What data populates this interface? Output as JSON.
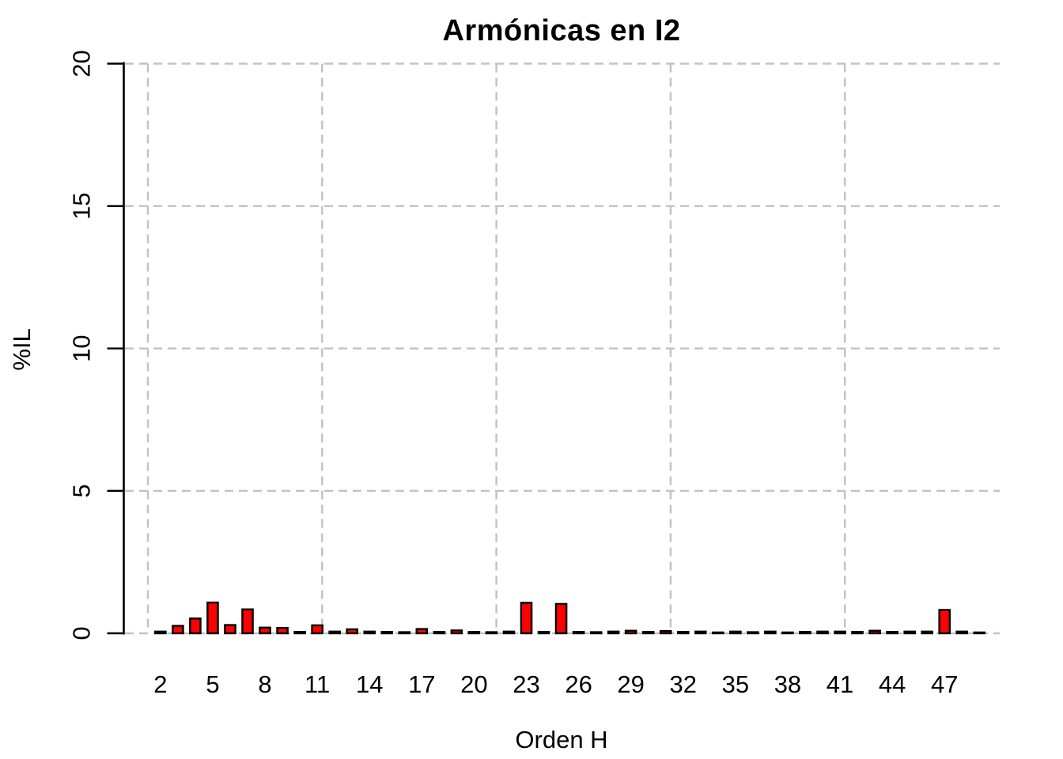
{
  "chart_data": {
    "type": "bar",
    "title": "Armónicas en I2",
    "xlabel": "Orden H",
    "ylabel": "%IL",
    "x": [
      2,
      3,
      4,
      5,
      6,
      7,
      8,
      9,
      10,
      11,
      12,
      13,
      14,
      15,
      16,
      17,
      18,
      19,
      20,
      21,
      22,
      23,
      24,
      25,
      26,
      27,
      28,
      29,
      30,
      31,
      32,
      33,
      34,
      35,
      36,
      37,
      38,
      39,
      40,
      41,
      42,
      43,
      44,
      45,
      46,
      47,
      48,
      49
    ],
    "values": [
      0.06,
      0.26,
      0.52,
      1.08,
      0.29,
      0.84,
      0.2,
      0.19,
      0.05,
      0.28,
      0.06,
      0.14,
      0.06,
      0.05,
      0.04,
      0.15,
      0.05,
      0.1,
      0.05,
      0.04,
      0.06,
      1.07,
      0.05,
      1.03,
      0.05,
      0.04,
      0.06,
      0.09,
      0.05,
      0.08,
      0.05,
      0.06,
      0.03,
      0.06,
      0.04,
      0.06,
      0.03,
      0.05,
      0.06,
      0.06,
      0.05,
      0.09,
      0.05,
      0.06,
      0.06,
      0.82,
      0.06,
      0.03
    ],
    "xtick_labels": [
      2,
      5,
      8,
      11,
      14,
      17,
      20,
      23,
      26,
      29,
      32,
      35,
      38,
      41,
      44,
      47
    ],
    "yticks": [
      0,
      5,
      10,
      15,
      20
    ],
    "ylim": [
      0,
      20
    ],
    "grid": true,
    "grid_style": "dashed",
    "legend_position": "none",
    "layout_hints": {
      "xgrid_units": [
        0,
        10,
        20,
        30,
        40
      ],
      "bar_unit_offset": 0.72
    },
    "colors": {
      "bar_fill": "#FF0000",
      "bar_border": "#000000",
      "grid": "#C3C3C3",
      "axis": "#000000",
      "text": "#000000",
      "background": "#FFFFFF"
    }
  }
}
